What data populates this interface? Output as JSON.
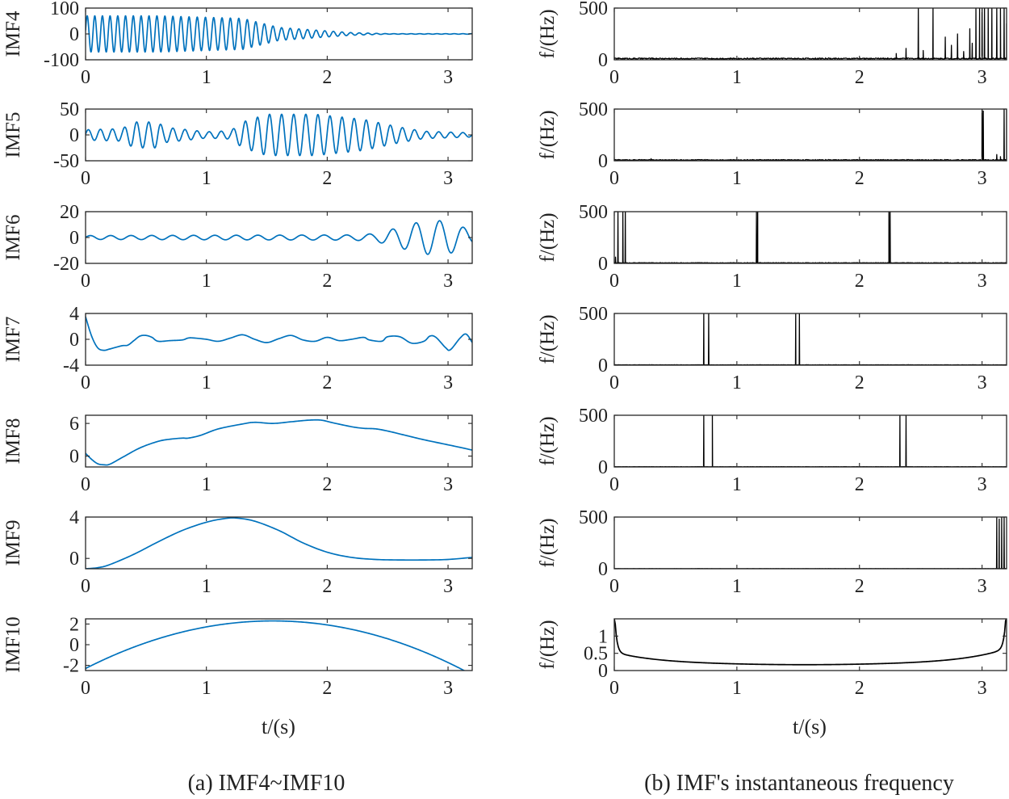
{
  "colors": {
    "imf": "#0072BD",
    "freq": "#000000",
    "axes": "#262626"
  },
  "panel_a": {
    "caption": "(a) IMF4~IMF10",
    "xlabel": "t/(s)",
    "xticks": [
      "0",
      "1",
      "2",
      "3"
    ],
    "xlim": [
      0,
      3.2
    ]
  },
  "panel_b": {
    "caption": "(b) IMF's instantaneous frequency",
    "xlabel": "t/(s)",
    "xticks": [
      "0",
      "1",
      "2",
      "3"
    ],
    "xlim": [
      0,
      3.2
    ]
  },
  "chart_data": [
    {
      "id": "imf4",
      "type": "line",
      "ylabel": "IMF4",
      "ylim": [
        -100,
        100
      ],
      "yticks": [
        100,
        0,
        -100
      ],
      "ytick_labels": [
        "100",
        "0",
        "-100"
      ],
      "xlim": [
        0,
        3.2
      ],
      "color": "#0072BD",
      "model": {
        "kind": "oscillation",
        "envelope": [
          [
            0,
            70
          ],
          [
            0.6,
            70
          ],
          [
            1.3,
            60
          ],
          [
            1.6,
            25
          ],
          [
            2.2,
            5
          ],
          [
            2.5,
            1
          ],
          [
            3.2,
            1
          ]
        ],
        "freq": [
          [
            0,
            16
          ],
          [
            1.5,
            14
          ],
          [
            3.2,
            14
          ]
        ]
      }
    },
    {
      "id": "imf5",
      "type": "line",
      "ylabel": "IMF5",
      "ylim": [
        -50,
        50
      ],
      "yticks": [
        50,
        0,
        -50
      ],
      "ytick_labels": [
        "50",
        "0",
        "-50"
      ],
      "xlim": [
        0,
        3.2
      ],
      "color": "#0072BD",
      "model": {
        "kind": "oscillation",
        "envelope": [
          [
            0,
            10
          ],
          [
            0.3,
            12
          ],
          [
            0.4,
            25
          ],
          [
            0.6,
            25
          ],
          [
            0.65,
            15
          ],
          [
            1,
            6
          ],
          [
            1.2,
            8
          ],
          [
            1.3,
            25
          ],
          [
            1.5,
            40
          ],
          [
            1.9,
            40
          ],
          [
            2.3,
            30
          ],
          [
            2.6,
            15
          ],
          [
            2.8,
            7
          ],
          [
            3.2,
            4
          ]
        ],
        "freq": [
          [
            0,
            10
          ],
          [
            3.2,
            10
          ]
        ]
      }
    },
    {
      "id": "imf6",
      "type": "line",
      "ylabel": "IMF6",
      "ylim": [
        -20,
        20
      ],
      "yticks": [
        20,
        0,
        -20
      ],
      "ytick_labels": [
        "20",
        "0",
        "-20"
      ],
      "xlim": [
        0,
        3.2
      ],
      "color": "#0072BD",
      "model": {
        "kind": "oscillation",
        "envelope": [
          [
            0,
            1.5
          ],
          [
            2.2,
            2
          ],
          [
            2.4,
            3
          ],
          [
            2.6,
            8
          ],
          [
            2.8,
            13
          ],
          [
            3.0,
            13
          ],
          [
            3.2,
            5
          ]
        ],
        "freq": [
          [
            0,
            6
          ],
          [
            3.2,
            5
          ]
        ]
      }
    },
    {
      "id": "imf7",
      "type": "line",
      "ylabel": "IMF7",
      "ylim": [
        -4,
        4
      ],
      "yticks": [
        4,
        0,
        -4
      ],
      "ytick_labels": [
        "4",
        "0",
        "-4"
      ],
      "xlim": [
        0,
        3.2
      ],
      "color": "#0072BD",
      "points": [
        [
          0,
          3.5
        ],
        [
          0.05,
          0.5
        ],
        [
          0.1,
          -1.3
        ],
        [
          0.15,
          -1.7
        ],
        [
          0.2,
          -1.5
        ],
        [
          0.3,
          -1.0
        ],
        [
          0.35,
          -0.9
        ],
        [
          0.4,
          -0.2
        ],
        [
          0.45,
          0.5
        ],
        [
          0.5,
          0.6
        ],
        [
          0.55,
          0.3
        ],
        [
          0.6,
          -0.3
        ],
        [
          0.7,
          -0.2
        ],
        [
          0.8,
          -0.1
        ],
        [
          0.85,
          0.2
        ],
        [
          0.9,
          0.2
        ],
        [
          1.0,
          0
        ],
        [
          1.1,
          -0.3
        ],
        [
          1.2,
          0.2
        ],
        [
          1.3,
          0.7
        ],
        [
          1.4,
          0
        ],
        [
          1.5,
          -0.5
        ],
        [
          1.6,
          0.1
        ],
        [
          1.7,
          0.6
        ],
        [
          1.8,
          -0.1
        ],
        [
          1.9,
          -0.3
        ],
        [
          2.0,
          0.3
        ],
        [
          2.1,
          -0.2
        ],
        [
          2.2,
          0
        ],
        [
          2.3,
          0.3
        ],
        [
          2.35,
          -0.1
        ],
        [
          2.45,
          -0.3
        ],
        [
          2.5,
          0.4
        ],
        [
          2.6,
          0.4
        ],
        [
          2.7,
          -0.6
        ],
        [
          2.8,
          -0.3
        ],
        [
          2.85,
          0.5
        ],
        [
          2.9,
          0.3
        ],
        [
          2.98,
          -1.3
        ],
        [
          3.02,
          -1.6
        ],
        [
          3.1,
          0.2
        ],
        [
          3.15,
          0.8
        ],
        [
          3.2,
          -0.5
        ]
      ]
    },
    {
      "id": "imf8",
      "type": "line",
      "ylabel": "IMF8",
      "ylim": [
        -2,
        7.5
      ],
      "yticks": [
        6,
        0
      ],
      "ytick_labels": [
        "6",
        "0"
      ],
      "xlim": [
        0,
        3.2
      ],
      "color": "#0072BD",
      "points": [
        [
          0,
          0.5
        ],
        [
          0.05,
          -0.6
        ],
        [
          0.1,
          -1.4
        ],
        [
          0.15,
          -1.6
        ],
        [
          0.2,
          -1.5
        ],
        [
          0.3,
          -0.3
        ],
        [
          0.45,
          1.5
        ],
        [
          0.6,
          2.7
        ],
        [
          0.7,
          3.1
        ],
        [
          0.8,
          3.3
        ],
        [
          0.85,
          3.3
        ],
        [
          0.95,
          3.8
        ],
        [
          1.1,
          5.0
        ],
        [
          1.3,
          5.9
        ],
        [
          1.4,
          6.2
        ],
        [
          1.55,
          6.0
        ],
        [
          1.7,
          6.3
        ],
        [
          1.85,
          6.6
        ],
        [
          1.95,
          6.6
        ],
        [
          2.05,
          6.1
        ],
        [
          2.2,
          5.4
        ],
        [
          2.3,
          5.1
        ],
        [
          2.4,
          5.0
        ],
        [
          2.5,
          4.6
        ],
        [
          2.65,
          3.8
        ],
        [
          2.8,
          3.0
        ],
        [
          2.95,
          2.3
        ],
        [
          3.1,
          1.6
        ],
        [
          3.2,
          1.1
        ]
      ]
    },
    {
      "id": "imf9",
      "type": "line",
      "ylabel": "IMF9",
      "ylim": [
        -1,
        4
      ],
      "yticks": [
        4,
        0
      ],
      "ytick_labels": [
        "4",
        "0"
      ],
      "xlim": [
        0,
        3.2
      ],
      "color": "#0072BD",
      "points": [
        [
          0,
          -1
        ],
        [
          0.1,
          -0.9
        ],
        [
          0.2,
          -0.6
        ],
        [
          0.4,
          0.4
        ],
        [
          0.6,
          1.6
        ],
        [
          0.8,
          2.7
        ],
        [
          1.0,
          3.5
        ],
        [
          1.15,
          3.85
        ],
        [
          1.25,
          3.9
        ],
        [
          1.4,
          3.6
        ],
        [
          1.6,
          2.7
        ],
        [
          1.8,
          1.5
        ],
        [
          2.0,
          0.6
        ],
        [
          2.2,
          0.1
        ],
        [
          2.4,
          -0.1
        ],
        [
          2.6,
          -0.15
        ],
        [
          2.8,
          -0.15
        ],
        [
          3.0,
          -0.1
        ],
        [
          3.2,
          0.1
        ]
      ]
    },
    {
      "id": "imf10",
      "type": "line",
      "ylabel": "IMF10",
      "ylim": [
        -2.5,
        2.5
      ],
      "yticks": [
        2,
        0,
        -2
      ],
      "ytick_labels": [
        "2",
        "0",
        "-2"
      ],
      "xlim": [
        0,
        3.2
      ],
      "color": "#0072BD",
      "model": {
        "kind": "arch",
        "peak_t": 1.55,
        "y_start": -2.3,
        "y_peak": 2.3
      }
    },
    {
      "id": "freq4",
      "type": "line",
      "ylabel": "f/(Hz)",
      "ylim": [
        0,
        500
      ],
      "yticks": [
        500,
        0
      ],
      "ytick_labels": [
        "500",
        "0"
      ],
      "xlim": [
        0,
        3.2
      ],
      "color": "#000000",
      "baseline": 12,
      "spikes": [
        [
          2.48,
          500
        ],
        [
          2.6,
          500
        ],
        [
          2.95,
          500
        ],
        [
          2.98,
          500
        ],
        [
          3.0,
          500
        ],
        [
          3.02,
          500
        ],
        [
          3.05,
          500
        ],
        [
          3.08,
          500
        ],
        [
          3.12,
          500
        ],
        [
          3.15,
          500
        ],
        [
          3.18,
          500
        ],
        [
          2.3,
          60
        ],
        [
          2.38,
          110
        ],
        [
          2.52,
          90
        ],
        [
          2.7,
          220
        ],
        [
          2.75,
          140
        ],
        [
          2.8,
          250
        ],
        [
          2.85,
          80
        ],
        [
          2.9,
          300
        ],
        [
          2.92,
          160
        ],
        [
          3.2,
          350
        ]
      ]
    },
    {
      "id": "freq5",
      "type": "line",
      "ylabel": "f/(Hz)",
      "ylim": [
        0,
        500
      ],
      "yticks": [
        500,
        0
      ],
      "ytick_labels": [
        "500",
        "0"
      ],
      "xlim": [
        0,
        3.2
      ],
      "color": "#000000",
      "baseline": 8,
      "spikes": [
        [
          0.3,
          20
        ],
        [
          1.0,
          15
        ],
        [
          3.0,
          500
        ],
        [
          3.01,
          480
        ],
        [
          3.18,
          500
        ],
        [
          3.2,
          500
        ],
        [
          3.12,
          60
        ],
        [
          3.15,
          40
        ]
      ]
    },
    {
      "id": "freq6",
      "type": "line",
      "ylabel": "f/(Hz)",
      "ylim": [
        0,
        500
      ],
      "yticks": [
        500,
        0
      ],
      "ytick_labels": [
        "500",
        "0"
      ],
      "xlim": [
        0,
        3.2
      ],
      "color": "#000000",
      "baseline": 5,
      "spikes": [
        [
          0.03,
          500
        ],
        [
          0.07,
          500
        ],
        [
          0.09,
          500
        ],
        [
          1.16,
          500
        ],
        [
          1.17,
          500
        ],
        [
          2.24,
          500
        ],
        [
          2.25,
          500
        ],
        [
          0.01,
          60
        ]
      ]
    },
    {
      "id": "freq7",
      "type": "line",
      "ylabel": "f/(Hz)",
      "ylim": [
        0,
        500
      ],
      "yticks": [
        500,
        0
      ],
      "ytick_labels": [
        "500",
        "0"
      ],
      "xlim": [
        0,
        3.2
      ],
      "color": "#000000",
      "baseline": 3,
      "spikes": [
        [
          0.73,
          500
        ],
        [
          0.77,
          500
        ],
        [
          1.48,
          500
        ],
        [
          1.51,
          500
        ]
      ]
    },
    {
      "id": "freq8",
      "type": "line",
      "ylabel": "f/(Hz)",
      "ylim": [
        0,
        500
      ],
      "yticks": [
        500,
        0
      ],
      "ytick_labels": [
        "500",
        "0"
      ],
      "xlim": [
        0,
        3.2
      ],
      "color": "#000000",
      "baseline": 2,
      "spikes": [
        [
          0.73,
          500
        ],
        [
          0.8,
          500
        ],
        [
          2.33,
          500
        ],
        [
          2.38,
          500
        ]
      ]
    },
    {
      "id": "freq9",
      "type": "line",
      "ylabel": "f/(Hz)",
      "ylim": [
        0,
        500
      ],
      "yticks": [
        500,
        0
      ],
      "ytick_labels": [
        "500",
        "0"
      ],
      "xlim": [
        0,
        3.2
      ],
      "color": "#000000",
      "baseline": 1,
      "spikes": [
        [
          3.12,
          500
        ],
        [
          3.14,
          480
        ],
        [
          3.16,
          500
        ],
        [
          3.18,
          500
        ]
      ]
    },
    {
      "id": "freq10",
      "type": "line",
      "ylabel": "f/(Hz)",
      "ylim": [
        0,
        1.5
      ],
      "yticks": [
        1,
        0.5,
        0
      ],
      "ytick_labels": [
        "1",
        "0.5",
        "0"
      ],
      "xlim": [
        0,
        3.2
      ],
      "color": "#000000",
      "model": {
        "kind": "bathtub",
        "edge": 1.5,
        "min": 0.17,
        "min_t": 1.55
      }
    }
  ]
}
